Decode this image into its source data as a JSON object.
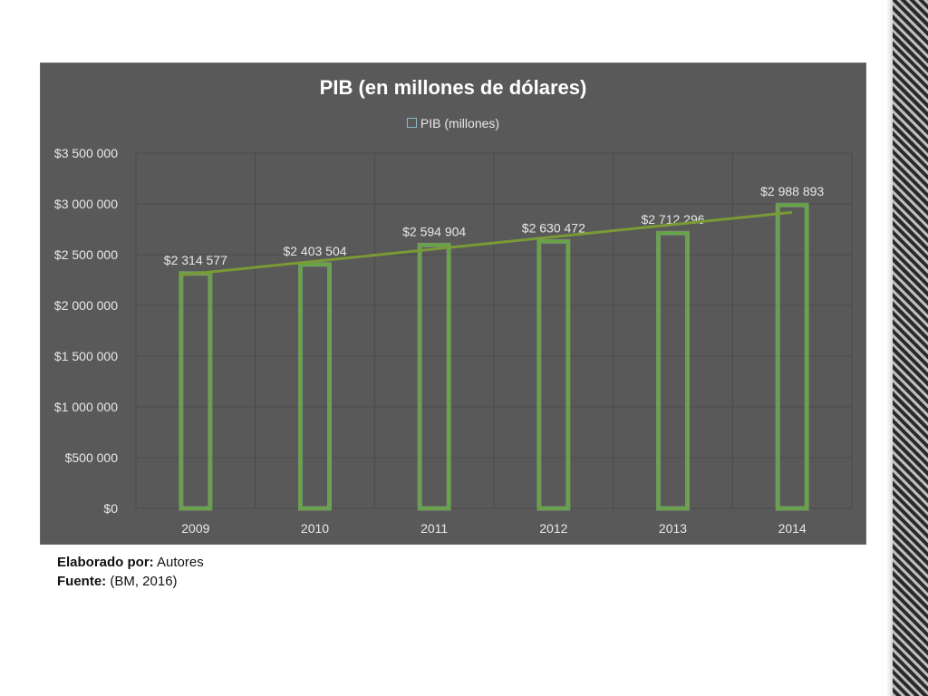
{
  "chart_data": {
    "type": "bar",
    "title": "PIB (en millones de dólares)",
    "legend": {
      "label": "PIB (millones)",
      "placement": "top"
    },
    "categories": [
      "2009",
      "2010",
      "2011",
      "2012",
      "2013",
      "2014"
    ],
    "series": [
      {
        "name": "PIB (millones)",
        "values": [
          2314577,
          2403504,
          2594904,
          2630472,
          2712296,
          2988893
        ],
        "data_labels": [
          "$2 314 577",
          "$2 403 504",
          "$2 594 904",
          "$2 630 472",
          "$2 712 296",
          "$2 988 893"
        ]
      }
    ],
    "trendline": {
      "type": "linear"
    },
    "ylim": [
      0,
      3500000
    ],
    "yticks": [
      0,
      500000,
      1000000,
      1500000,
      2000000,
      2500000,
      3000000,
      3500000
    ],
    "ytick_labels": [
      "$0",
      "$500 000",
      "$1 000 000",
      "$1 500 000",
      "$2 000 000",
      "$2 500 000",
      "$3 000 000",
      "$3 500 000"
    ],
    "grid": true,
    "colors": {
      "background": "#595959",
      "bar_outline": "#5faa3a",
      "bar_glow": "#9be07a",
      "trendline": "#7a9a35",
      "grid": "#4a4a4a",
      "text": "#e8e8e8"
    }
  },
  "caption": {
    "line1_label": "Elaborado por:",
    "line1_value": "Autores",
    "line2_label": "Fuente:",
    "line2_value": "(BM, 2016)"
  }
}
